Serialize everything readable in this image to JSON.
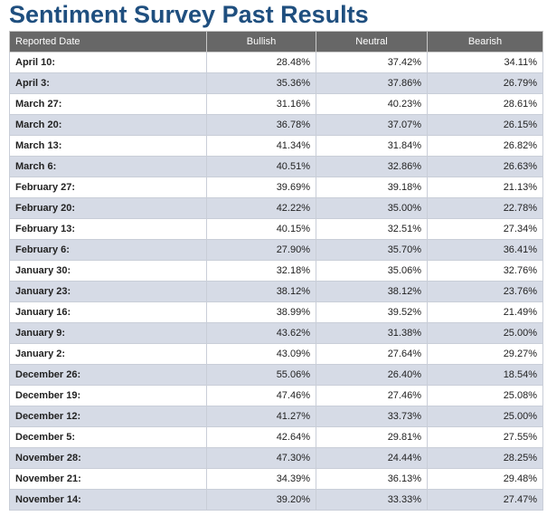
{
  "page": {
    "title": "Sentiment Survey Past Results"
  },
  "table": {
    "headers": [
      "Reported Date",
      "Bullish",
      "Neutral",
      "Bearish"
    ],
    "rows": [
      {
        "date": "April 10:",
        "bullish": "28.48%",
        "neutral": "37.42%",
        "bearish": "34.11%"
      },
      {
        "date": "April 3:",
        "bullish": "35.36%",
        "neutral": "37.86%",
        "bearish": "26.79%"
      },
      {
        "date": "March 27:",
        "bullish": "31.16%",
        "neutral": "40.23%",
        "bearish": "28.61%"
      },
      {
        "date": "March 20:",
        "bullish": "36.78%",
        "neutral": "37.07%",
        "bearish": "26.15%"
      },
      {
        "date": "March 13:",
        "bullish": "41.34%",
        "neutral": "31.84%",
        "bearish": "26.82%"
      },
      {
        "date": "March 6:",
        "bullish": "40.51%",
        "neutral": "32.86%",
        "bearish": "26.63%"
      },
      {
        "date": "February 27:",
        "bullish": "39.69%",
        "neutral": "39.18%",
        "bearish": "21.13%"
      },
      {
        "date": "February 20:",
        "bullish": "42.22%",
        "neutral": "35.00%",
        "bearish": "22.78%"
      },
      {
        "date": "February 13:",
        "bullish": "40.15%",
        "neutral": "32.51%",
        "bearish": "27.34%"
      },
      {
        "date": "February 6:",
        "bullish": "27.90%",
        "neutral": "35.70%",
        "bearish": "36.41%"
      },
      {
        "date": "January 30:",
        "bullish": "32.18%",
        "neutral": "35.06%",
        "bearish": "32.76%"
      },
      {
        "date": "January 23:",
        "bullish": "38.12%",
        "neutral": "38.12%",
        "bearish": "23.76%"
      },
      {
        "date": "January 16:",
        "bullish": "38.99%",
        "neutral": "39.52%",
        "bearish": "21.49%"
      },
      {
        "date": "January 9:",
        "bullish": "43.62%",
        "neutral": "31.38%",
        "bearish": "25.00%"
      },
      {
        "date": "January 2:",
        "bullish": "43.09%",
        "neutral": "27.64%",
        "bearish": "29.27%"
      },
      {
        "date": "December 26:",
        "bullish": "55.06%",
        "neutral": "26.40%",
        "bearish": "18.54%"
      },
      {
        "date": "December 19:",
        "bullish": "47.46%",
        "neutral": "27.46%",
        "bearish": "25.08%"
      },
      {
        "date": "December 12:",
        "bullish": "41.27%",
        "neutral": "33.73%",
        "bearish": "25.00%"
      },
      {
        "date": "December 5:",
        "bullish": "42.64%",
        "neutral": "29.81%",
        "bearish": "27.55%"
      },
      {
        "date": "November 28:",
        "bullish": "47.30%",
        "neutral": "24.44%",
        "bearish": "28.25%"
      },
      {
        "date": "November 21:",
        "bullish": "34.39%",
        "neutral": "36.13%",
        "bearish": "29.48%"
      },
      {
        "date": "November 14:",
        "bullish": "39.20%",
        "neutral": "33.33%",
        "bearish": "27.47%"
      }
    ]
  },
  "colors": {
    "title": "#1f4f7f",
    "header_bg": "#676767",
    "row_alt_bg": "#d6dbe6"
  }
}
